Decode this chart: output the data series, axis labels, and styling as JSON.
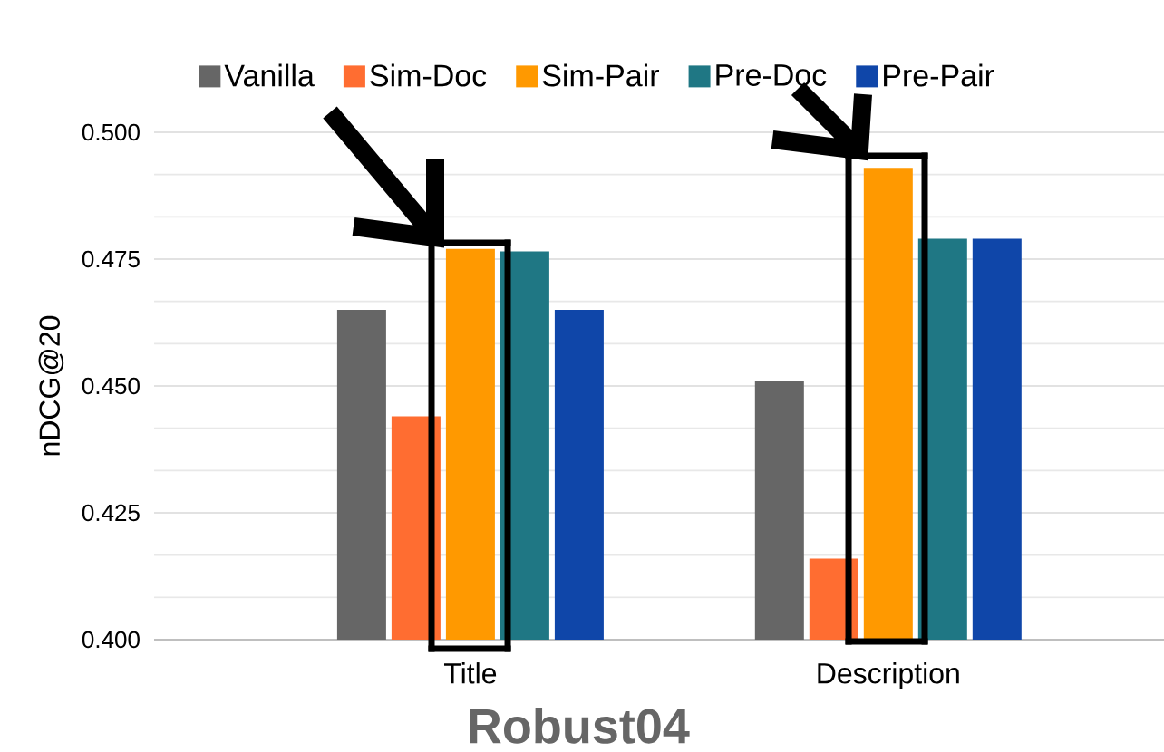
{
  "chart_data": {
    "type": "bar",
    "xlabel": "Robust04",
    "ylabel": "nDCG@20",
    "categories": [
      "Title",
      "Description"
    ],
    "series": [
      {
        "name": "Vanilla",
        "color": "#666666",
        "values": [
          0.465,
          0.451
        ]
      },
      {
        "name": "Sim-Doc",
        "color": "#ff6d31",
        "values": [
          0.444,
          0.416
        ]
      },
      {
        "name": "Sim-Pair",
        "color": "#ff9900",
        "values": [
          0.477,
          0.493
        ]
      },
      {
        "name": "Pre-Doc",
        "color": "#1f7784",
        "values": [
          0.4765,
          0.479
        ]
      },
      {
        "name": "Pre-Pair",
        "color": "#0f46a9",
        "values": [
          0.465,
          0.479
        ]
      }
    ],
    "ylim": [
      0.4,
      0.5
    ],
    "yticks": [
      {
        "value": 0.4,
        "label": "0.400"
      },
      {
        "value": 0.425,
        "label": "0.425"
      },
      {
        "value": 0.45,
        "label": "0.450"
      },
      {
        "value": 0.475,
        "label": "0.475"
      },
      {
        "value": 0.5,
        "label": "0.500"
      }
    ],
    "grid": "y",
    "legend": "top"
  }
}
